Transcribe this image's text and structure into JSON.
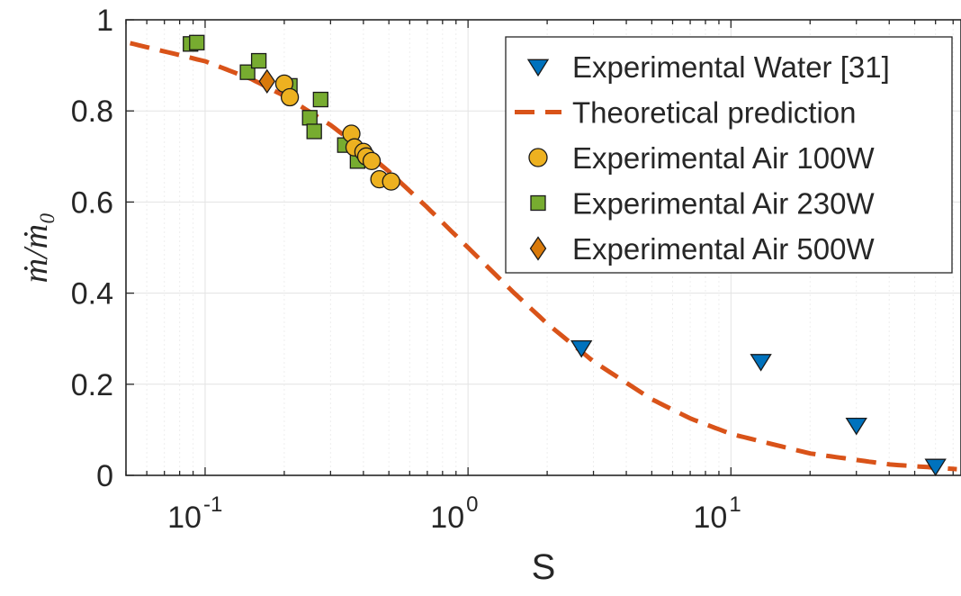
{
  "chart_data": {
    "type": "scatter",
    "title": "",
    "xlabel": "S",
    "ylabel": "ṁ/ṁ₀",
    "xscale": "log",
    "xlim": [
      0.05,
      75
    ],
    "ylim": [
      0,
      1
    ],
    "grid": true,
    "legend_position": "top-right",
    "x_ticks": [
      {
        "value": 0.1,
        "base": "10",
        "exp": "-1"
      },
      {
        "value": 1,
        "base": "10",
        "exp": "0"
      },
      {
        "value": 10,
        "base": "10",
        "exp": "1"
      }
    ],
    "y_ticks": [
      {
        "value": 0,
        "label": "0"
      },
      {
        "value": 0.2,
        "label": "0.2"
      },
      {
        "value": 0.4,
        "label": "0.4"
      },
      {
        "value": 0.6,
        "label": "0.6"
      },
      {
        "value": 0.8,
        "label": "0.8"
      },
      {
        "value": 1,
        "label": "1"
      }
    ],
    "series": [
      {
        "name": "Experimental Water [31]",
        "marker": "triangle-down",
        "color": "#0072BD",
        "x": [
          2.7,
          13.0,
          30.0,
          60.0
        ],
        "y": [
          0.28,
          0.25,
          0.11,
          0.02
        ]
      },
      {
        "name": "Theoretical prediction",
        "marker": "dashed-line",
        "color": "#D95319",
        "x": [
          0.05,
          0.1,
          0.15,
          0.2,
          0.3,
          0.4,
          0.5,
          0.7,
          1.0,
          1.5,
          2.0,
          3.0,
          5.0,
          7.0,
          10.0,
          20.0,
          40.0,
          75.0
        ],
        "y": [
          0.951,
          0.909,
          0.87,
          0.833,
          0.769,
          0.714,
          0.667,
          0.588,
          0.5,
          0.4,
          0.333,
          0.25,
          0.167,
          0.125,
          0.091,
          0.048,
          0.024,
          0.013
        ]
      },
      {
        "name": "Experimental Air 100W",
        "marker": "circle",
        "color": "#EDB120",
        "x": [
          0.2,
          0.21,
          0.36,
          0.37,
          0.4,
          0.41,
          0.43,
          0.46,
          0.51
        ],
        "y": [
          0.86,
          0.83,
          0.75,
          0.72,
          0.71,
          0.7,
          0.69,
          0.65,
          0.645
        ]
      },
      {
        "name": "Experimental Air 230W",
        "marker": "square",
        "color": "#77AC30",
        "x": [
          0.088,
          0.093,
          0.145,
          0.16,
          0.21,
          0.25,
          0.26,
          0.275,
          0.34,
          0.38
        ],
        "y": [
          0.947,
          0.95,
          0.885,
          0.91,
          0.855,
          0.785,
          0.755,
          0.825,
          0.725,
          0.69
        ]
      },
      {
        "name": "Experimental Air 500W",
        "marker": "diamond",
        "color": "#D97A0B",
        "x": [
          0.172
        ],
        "y": [
          0.865
        ]
      }
    ]
  }
}
